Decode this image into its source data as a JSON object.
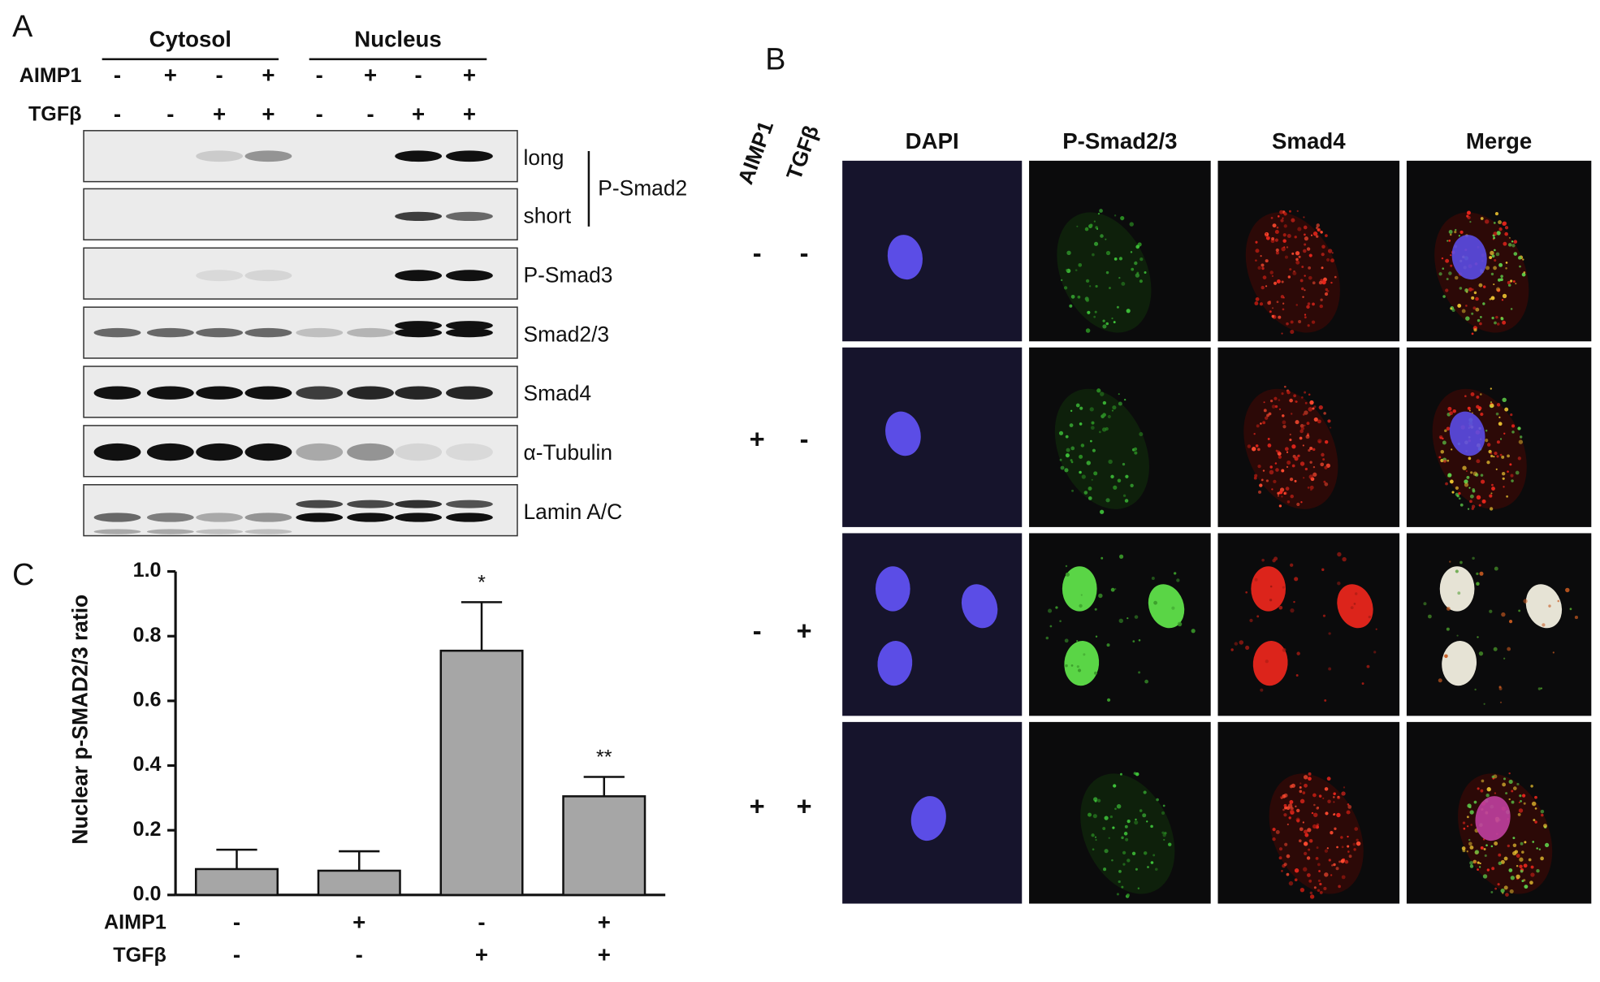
{
  "panel_a": {
    "label": "A",
    "groups": [
      "Cytosol",
      "Nucleus"
    ],
    "conditions": [
      {
        "name": "AIMP1",
        "signs": [
          "-",
          "+",
          "-",
          "+",
          "-",
          "+",
          "-",
          "+"
        ]
      },
      {
        "name": "TGFβ",
        "signs": [
          "-",
          "-",
          "+",
          "+",
          "-",
          "-",
          "+",
          "+"
        ]
      }
    ],
    "blots": [
      "long",
      "short",
      "P-Smad3",
      "Smad2/3",
      "Smad4",
      "α-Tubulin",
      "Lamin A/C"
    ],
    "bracket": "P-Smad2"
  },
  "panel_b": {
    "label": "B",
    "columns": [
      "DAPI",
      "P-Smad2/3",
      "Smad4",
      "Merge"
    ],
    "row_factors": [
      "AIMP1",
      "TGFβ"
    ],
    "rows": [
      [
        "-",
        "-"
      ],
      [
        "+",
        "-"
      ],
      [
        "-",
        "+"
      ],
      [
        "+",
        "+"
      ]
    ]
  },
  "chart_data": {
    "type": "bar",
    "panel_label": "C",
    "ylabel": "Nuclear p-SMAD2/3 ratio",
    "factors": [
      {
        "name": "AIMP1",
        "levels": [
          "-",
          "+",
          "-",
          "+"
        ]
      },
      {
        "name": "TGFβ",
        "levels": [
          "-",
          "-",
          "+",
          "+"
        ]
      }
    ],
    "values": [
      0.08,
      0.075,
      0.755,
      0.305
    ],
    "errors": [
      0.06,
      0.06,
      0.15,
      0.06
    ],
    "annotations": [
      null,
      null,
      "*",
      "**"
    ],
    "color": "#a6a6a6",
    "ylim": [
      0,
      1.0
    ],
    "yticks": [
      {
        "value": 0,
        "label": "0.0"
      },
      0.2,
      0.4,
      0.6,
      0.8,
      {
        "value": 1,
        "label": "1.0"
      }
    ]
  }
}
